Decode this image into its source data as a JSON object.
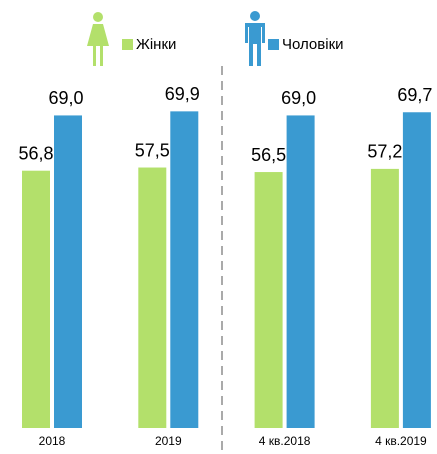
{
  "chart_data": {
    "type": "bar",
    "categories": [
      "2018",
      "2019",
      "4 кв.2018",
      "4 кв.2019"
    ],
    "series": [
      {
        "name": "Жінки",
        "color": "#b3e06b",
        "values": [
          56.8,
          57.5,
          56.5,
          57.2
        ],
        "value_labels": [
          "56,8",
          "57,5",
          "56,5",
          "57,2"
        ]
      },
      {
        "name": "Чоловіки",
        "color": "#3a9ad1",
        "values": [
          69.0,
          69.9,
          69.0,
          69.7
        ],
        "value_labels": [
          "69,0",
          "69,9",
          "69,0",
          "69,7"
        ]
      }
    ]
  }
}
